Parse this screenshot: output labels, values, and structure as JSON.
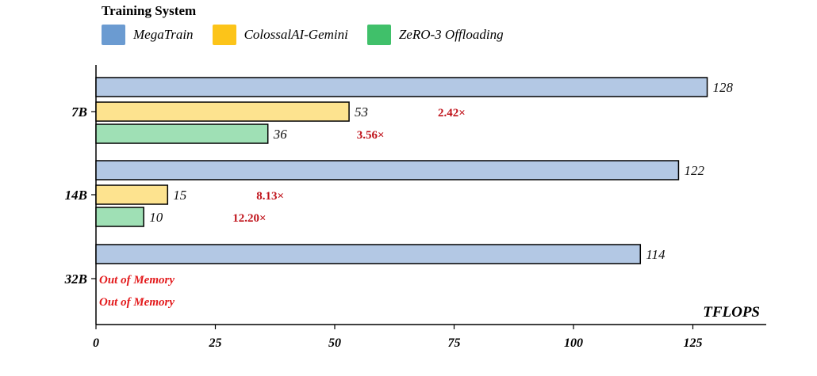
{
  "legend": {
    "title": "Training System",
    "items": [
      {
        "label": "MegaTrain",
        "color": "#6b9bd1"
      },
      {
        "label": "ColossalAI-Gemini",
        "color": "#fcc419"
      },
      {
        "label": "ZeRO-3 Offloading",
        "color": "#40c06a"
      }
    ]
  },
  "chart_data": {
    "type": "bar",
    "orientation": "horizontal",
    "title": "",
    "xlabel": "TFLOPS",
    "ylabel": "",
    "xlim": [
      0,
      140
    ],
    "xticks": [
      0,
      25,
      50,
      75,
      100,
      125
    ],
    "categories": [
      "7B",
      "14B",
      "32B"
    ],
    "series": [
      {
        "name": "MegaTrain",
        "fill": "#b3c8e4",
        "values": [
          128,
          122,
          114
        ]
      },
      {
        "name": "ColossalAI-Gemini",
        "fill": "#fde38f",
        "values": [
          53,
          15,
          null
        ]
      },
      {
        "name": "ZeRO-3 Offloading",
        "fill": "#9fe0b5",
        "values": [
          36,
          10,
          null
        ]
      }
    ],
    "speedup_labels": [
      {
        "category": "7B",
        "series": "ColossalAI-Gemini",
        "text": "2.42×"
      },
      {
        "category": "7B",
        "series": "ZeRO-3 Offloading",
        "text": "3.56×"
      },
      {
        "category": "14B",
        "series": "ColossalAI-Gemini",
        "text": "8.13×"
      },
      {
        "category": "14B",
        "series": "ZeRO-3 Offloading",
        "text": "12.20×"
      }
    ],
    "oom_label": "Out of Memory",
    "annotation_color": "#c0141c",
    "oom_color": "#e31a1c"
  }
}
